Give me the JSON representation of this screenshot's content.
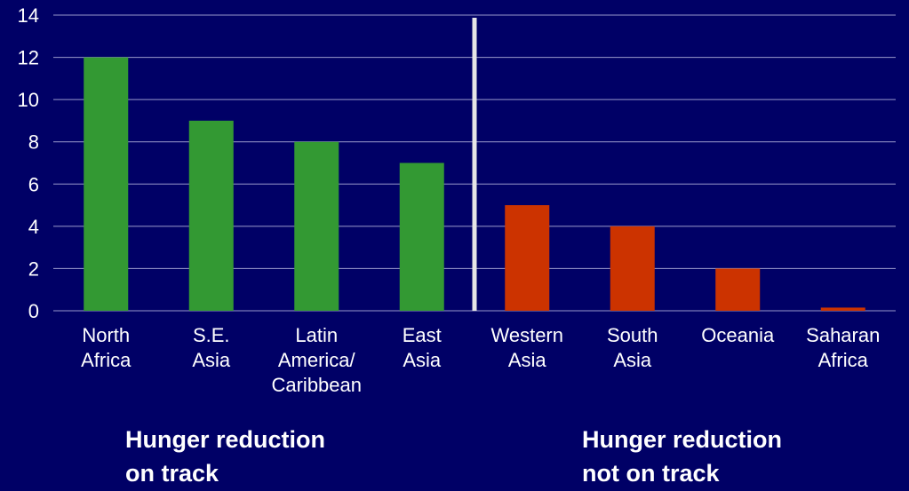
{
  "colors": {
    "background": "#000066",
    "on_track": "#339933",
    "not_on_track": "#CC3300",
    "divider": "#e6e6e6",
    "grid": "#9999cc"
  },
  "chart_data": {
    "type": "bar",
    "categories": [
      [
        "North",
        "Africa"
      ],
      [
        "S.E.",
        "Asia"
      ],
      [
        "Latin",
        "America/",
        "Caribbean"
      ],
      [
        "East",
        "Asia"
      ],
      [
        "Western",
        "Asia"
      ],
      [
        "South",
        "Asia"
      ],
      [
        "Oceania"
      ],
      [
        "Saharan",
        "Africa"
      ]
    ],
    "values": [
      12,
      9,
      8,
      7,
      5,
      4,
      2,
      0.15
    ],
    "group": [
      "on_track",
      "on_track",
      "on_track",
      "on_track",
      "not_on_track",
      "not_on_track",
      "not_on_track",
      "not_on_track"
    ],
    "ylim": [
      0,
      14
    ],
    "yticks": [
      0,
      2,
      4,
      6,
      8,
      10,
      12,
      14
    ],
    "grid": true,
    "title": "",
    "xlabel": "",
    "ylabel": ""
  },
  "groups": {
    "on_track": {
      "line1": "Hunger reduction",
      "line2": "on track"
    },
    "not_on_track": {
      "line1": "Hunger reduction",
      "line2": "not on track"
    }
  }
}
